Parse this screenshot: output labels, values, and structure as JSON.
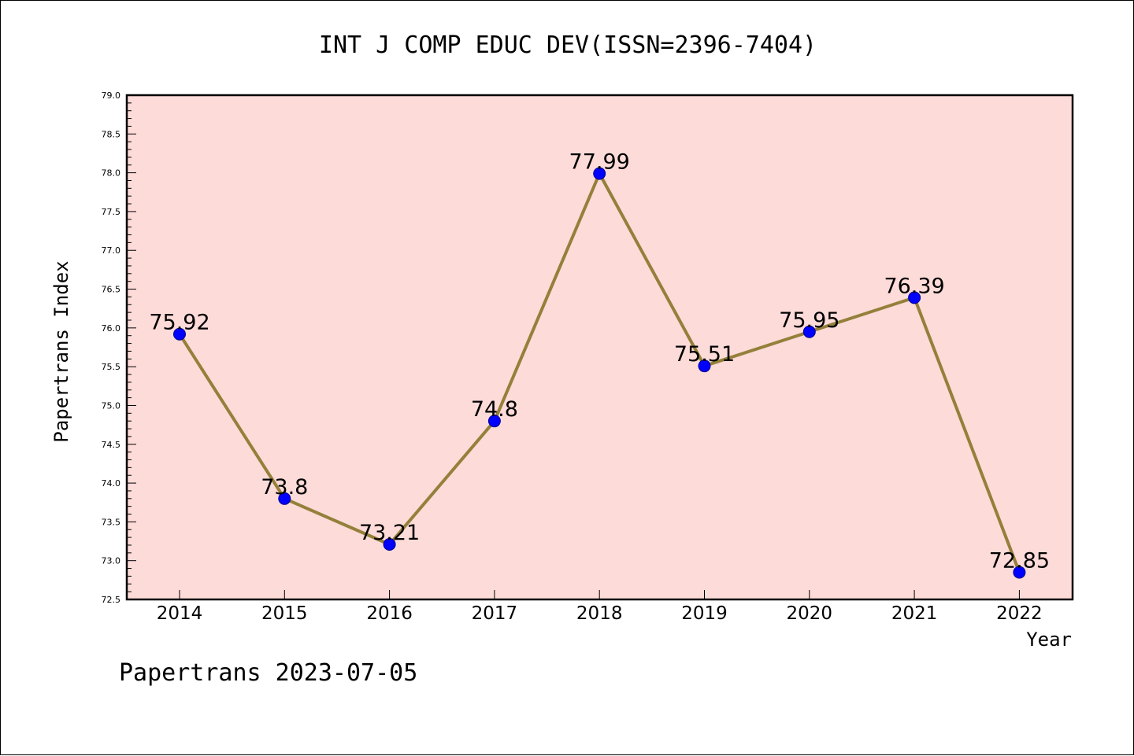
{
  "chart_data": {
    "type": "line",
    "title": "INT J COMP EDUC DEV(ISSN=2396-7404)",
    "xlabel": "Year",
    "ylabel": "Papertrans Index",
    "categories": [
      "2014",
      "2015",
      "2016",
      "2017",
      "2018",
      "2019",
      "2020",
      "2021",
      "2022"
    ],
    "values": [
      75.92,
      73.8,
      73.21,
      74.8,
      77.99,
      75.51,
      75.95,
      76.39,
      72.85
    ],
    "data_labels": [
      "75.92",
      "73.8",
      "73.21",
      "74.8",
      "77.99",
      "75.51",
      "75.95",
      "76.39",
      "72.85"
    ],
    "ylim": [
      72.5,
      79.0
    ],
    "yticks": [
      "72.5",
      "73.0",
      "73.5",
      "74.0",
      "74.5",
      "75.0",
      "75.5",
      "76.0",
      "76.5",
      "77.0",
      "77.5",
      "78.0",
      "78.5",
      "79.0"
    ],
    "grid": false,
    "legend": "none",
    "colors": {
      "plot_background": "#fddbd9",
      "line": "#94803a",
      "marker": "#0000ff",
      "marker_edge": "#00008b",
      "axes": "#000000"
    }
  },
  "footer": {
    "text": "Papertrans 2023-07-05"
  }
}
